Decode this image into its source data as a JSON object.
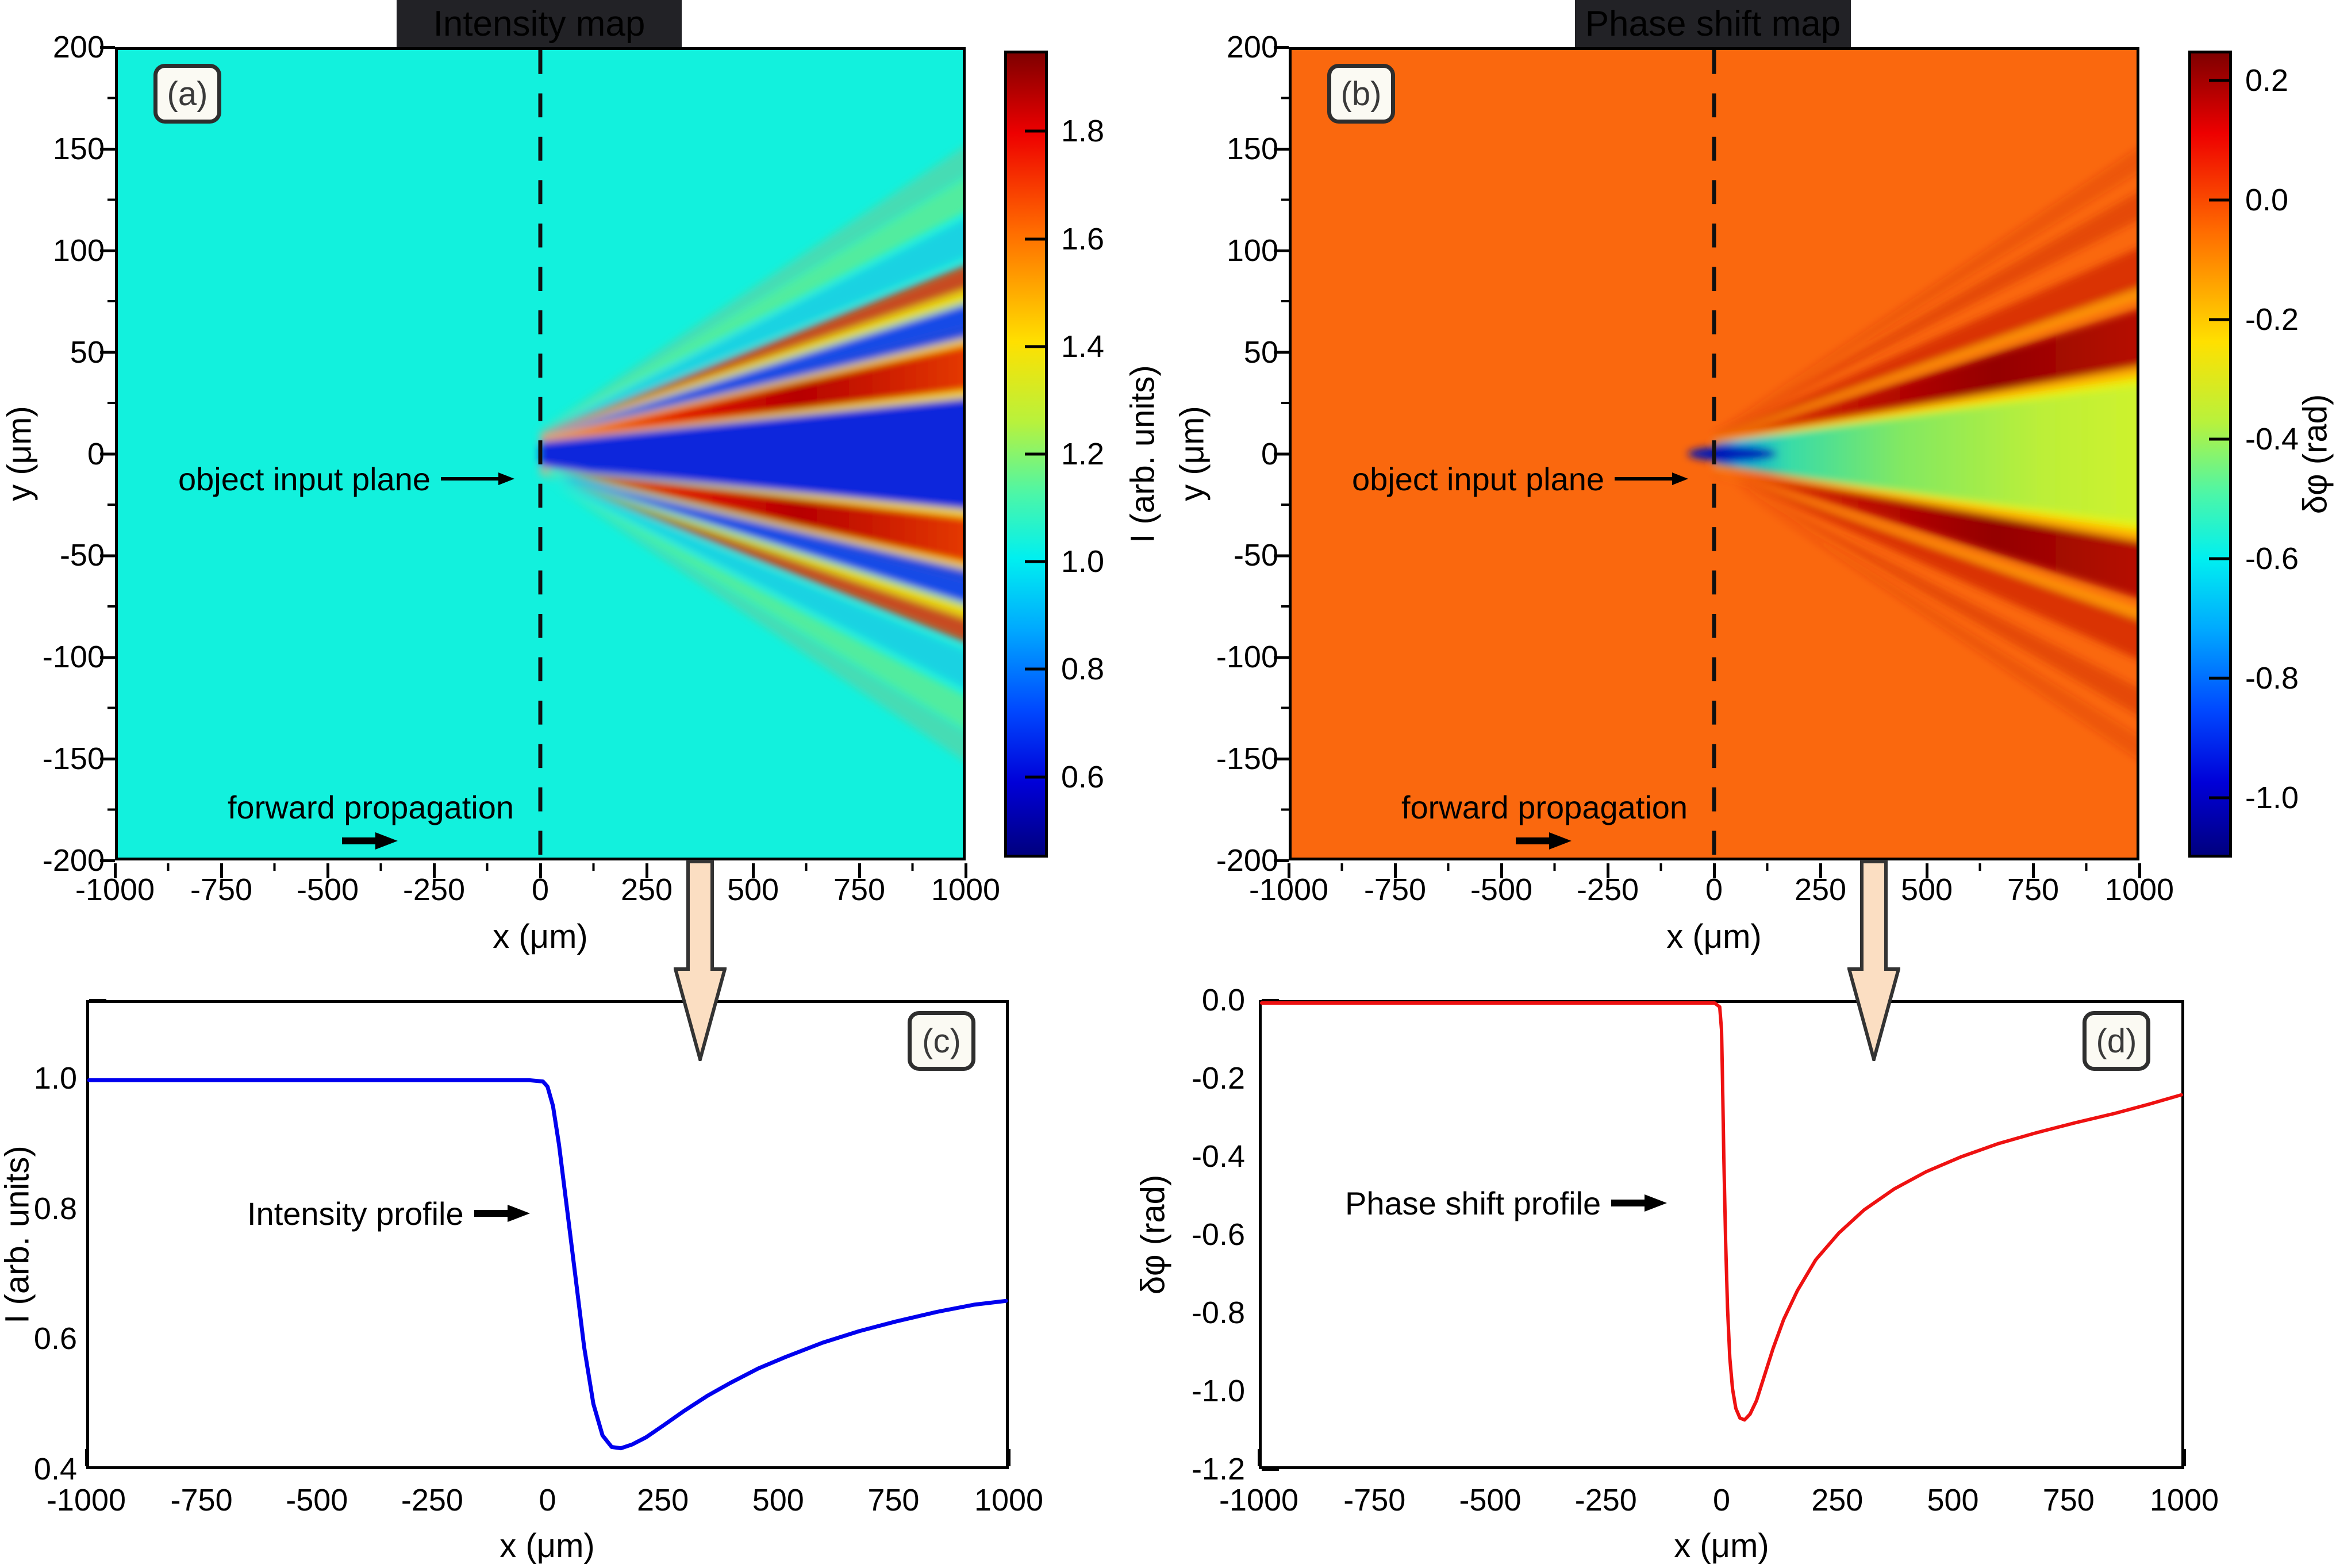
{
  "figure": {
    "panel_a": {
      "label": "(a)",
      "title": "Intensity map",
      "x_title": "x (μm)",
      "y_title": "y (μm)",
      "xticks": [
        "-1000",
        "-750",
        "-500",
        "-250",
        "0",
        "250",
        "500",
        "750",
        "1000"
      ],
      "yticks": [
        "200",
        "150",
        "100",
        "50",
        "0",
        "-50",
        "-100",
        "-150",
        "-200"
      ],
      "annotation_plane": "object input plane",
      "annotation_forward": "forward propagation",
      "colorbar": {
        "title": "I (arb. units)",
        "ticks": [
          "1.8",
          "1.6",
          "1.4",
          "1.2",
          "1.0",
          "0.8",
          "0.6"
        ]
      }
    },
    "panel_b": {
      "label": "(b)",
      "title": "Phase shift map",
      "x_title": "x (μm)",
      "y_title": "y (μm)",
      "xticks": [
        "-1000",
        "-750",
        "-500",
        "-250",
        "0",
        "250",
        "500",
        "750",
        "1000"
      ],
      "yticks": [
        "200",
        "150",
        "100",
        "50",
        "0",
        "-50",
        "-100",
        "-150",
        "-200"
      ],
      "annotation_plane": "object input plane",
      "annotation_forward": "forward propagation",
      "colorbar": {
        "title": "δφ (rad)",
        "ticks": [
          "0.2",
          "0.0",
          "-0.2",
          "-0.4",
          "-0.6",
          "-0.8",
          "-1.0"
        ]
      }
    },
    "panel_c": {
      "label": "(c)",
      "annotation": "Intensity profile",
      "x_title": "x (μm)",
      "y_title": "I (arb. units)",
      "xticks": [
        "-1000",
        "-750",
        "-500",
        "-250",
        "0",
        "250",
        "500",
        "750",
        "1000"
      ],
      "yticks": [
        "1.0",
        "0.8",
        "0.6",
        "0.4"
      ]
    },
    "panel_d": {
      "label": "(d)",
      "annotation": "Phase shift profile",
      "x_title": "x (μm)",
      "y_title": "δφ (rad)",
      "xticks": [
        "-1000",
        "-750",
        "-500",
        "-250",
        "0",
        "250",
        "500",
        "750",
        "1000"
      ],
      "yticks": [
        "0.0",
        "-0.2",
        "-0.4",
        "-0.6",
        "-0.8",
        "-1.0",
        "-1.2"
      ]
    }
  },
  "chart_data": [
    {
      "id": "a",
      "type": "heatmap",
      "title": "Intensity map",
      "xlabel": "x (μm)",
      "ylabel": "y (μm)",
      "xlim": [
        -1000,
        1000
      ],
      "ylim": [
        -200,
        200
      ],
      "colormap": "jet",
      "colorbar_label": "I (arb. units)",
      "colorbar_ticks": [
        1.8,
        1.6,
        1.4,
        1.2,
        1.0,
        0.8,
        0.6
      ],
      "colorbar_range": [
        0.45,
        1.95
      ],
      "background_value": 1.0,
      "annotations": [
        "object input plane",
        "forward propagation"
      ],
      "description": "Uniform intensity I=1 (cyan) left of the object input plane at x=0 (dashed line); for x>0 a symmetric diffraction fan about y=0 with a dark-blue central minimum wedge (I≈0.5) flanked by red maxima (I≈1.8), blue minima and weaker yellow/red fringes opening to |y|≈150 μm at x=1000 μm."
    },
    {
      "id": "b",
      "type": "heatmap",
      "title": "Phase shift map",
      "xlabel": "x (μm)",
      "ylabel": "y (μm)",
      "xlim": [
        -1000,
        1000
      ],
      "ylim": [
        -200,
        200
      ],
      "colormap": "jet",
      "colorbar_label": "δφ (rad)",
      "colorbar_ticks": [
        0.2,
        0.0,
        -0.2,
        -0.4,
        -0.6,
        -0.8,
        -1.0
      ],
      "colorbar_range": [
        -1.1,
        0.25
      ],
      "background_value": 0.0,
      "annotations": [
        "object input plane",
        "forward propagation"
      ],
      "description": "Uniform phase shift δφ=0 (orange) left of the object input plane at x=0 (dashed line); for x>0 a central negative-phase wedge from dark blue (δφ≈-1) at the origin through cyan to yellow-green (δφ≈-0.25), flanked by dark-red positive-phase streaks (δφ≈+0.2) opening to |y|≈150 μm at x=1000 μm."
    },
    {
      "id": "c",
      "type": "line",
      "series_label": "Intensity profile",
      "color": "#0000ee",
      "xlabel": "x (μm)",
      "ylabel": "I (arb. units)",
      "xlim": [
        -1000,
        1000
      ],
      "ylim": [
        0.4,
        1.12
      ],
      "x": [
        -1000,
        -600,
        -300,
        -120,
        -40,
        -10,
        0,
        12,
        25,
        40,
        60,
        80,
        100,
        120,
        140,
        160,
        185,
        215,
        250,
        300,
        350,
        400,
        460,
        520,
        600,
        680,
        760,
        850,
        930,
        1000
      ],
      "y": [
        1.0,
        1.0,
        1.0,
        1.0,
        1.0,
        0.998,
        0.99,
        0.96,
        0.9,
        0.815,
        0.7,
        0.585,
        0.497,
        0.448,
        0.43,
        0.428,
        0.434,
        0.445,
        0.462,
        0.487,
        0.51,
        0.53,
        0.552,
        0.57,
        0.592,
        0.61,
        0.625,
        0.64,
        0.651,
        0.657
      ]
    },
    {
      "id": "d",
      "type": "line",
      "series_label": "Phase shift profile",
      "color": "#ee1111",
      "xlabel": "x (μm)",
      "ylabel": "δφ (rad)",
      "xlim": [
        -1000,
        1000
      ],
      "ylim": [
        -1.2,
        0.0
      ],
      "x": [
        -1000,
        -500,
        -200,
        -60,
        -15,
        -4,
        0,
        2,
        5,
        9,
        13,
        18,
        24,
        31,
        40,
        50,
        62,
        76,
        92,
        112,
        135,
        165,
        205,
        255,
        310,
        375,
        445,
        520,
        600,
        685,
        770,
        855,
        930,
        1000
      ],
      "y": [
        0,
        0,
        0,
        0,
        0,
        -0.01,
        -0.07,
        -0.19,
        -0.4,
        -0.62,
        -0.79,
        -0.92,
        -1.0,
        -1.05,
        -1.075,
        -1.08,
        -1.065,
        -1.03,
        -0.97,
        -0.895,
        -0.82,
        -0.745,
        -0.665,
        -0.596,
        -0.536,
        -0.482,
        -0.437,
        -0.399,
        -0.365,
        -0.336,
        -0.31,
        -0.286,
        -0.262,
        -0.238
      ]
    }
  ]
}
